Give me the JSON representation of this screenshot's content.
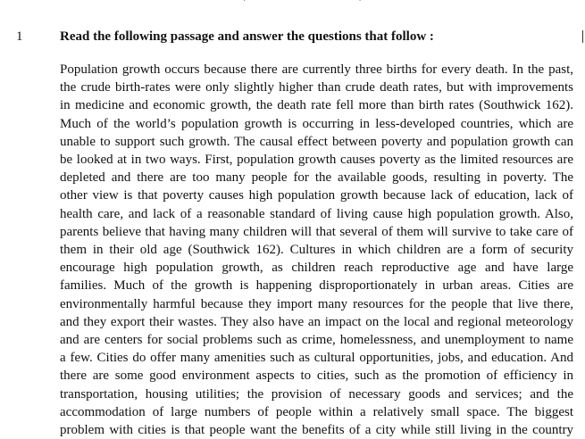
{
  "header_fragment": "( · · · · · · · · · · · · )",
  "question": {
    "number": "1",
    "instruction": "Read the following passage and answer the questions that follow :"
  },
  "passage_lines": [
    "Population growth occurs because there are currently three births for every death. In the past,",
    "the crude birth-rates were only slightly higher than crude death rates, but with improvements",
    "in medicine and economic growth, the death rate fell more than birth rates (Southwick 162).",
    "Much of the world’s population growth is occurring in less-developed countries, which are",
    "unable to support such growth. The causal effect between poverty and population growth can",
    "be looked at in two ways. First, population growth causes poverty as the limited resources are",
    "depleted and there are too many people for the available goods, resulting in poverty. The",
    "other view is that poverty causes high population growth because lack of education, lack of",
    "health care, and lack of a reasonable standard of living cause high population growth. Also,",
    "parents believe that having many children will that several of them will survive to take care of",
    "them in their old age (Southwick 162). Cultures in which children are a form of security",
    "encourage high population growth, as children reach reproductive age and have large",
    "families. Much of the growth is happening disproportionately in urban areas. Cities are",
    "environmentally harmful because they import many resources for the people that live there,",
    "and they export their wastes. They also have an impact on the local and regional meteorology",
    "and are centers for social problems such as crime, homelessness, and unemployment to name",
    "a few. Cities do offer many amenities such as cultural opportunities, jobs, and education. And",
    "there are some good environment aspects to cities, such as the promotion of efficiency in",
    "transportation, housing utilities; the provision of necessary goods and services; and the",
    "accommodation of large numbers of people within a relatively small space. The biggest",
    "problem with cities is that people want the benefits of a city while still living in the country"
  ]
}
